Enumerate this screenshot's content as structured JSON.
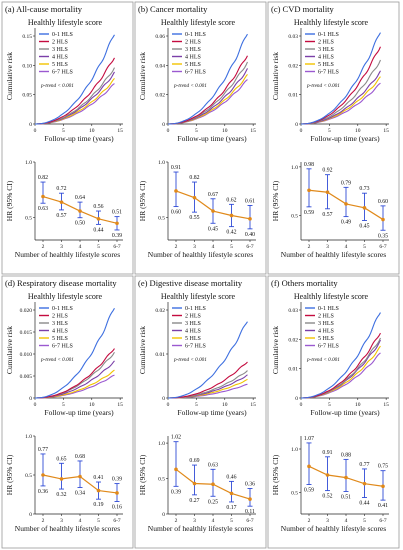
{
  "colors": {
    "hls_0_1": "#3d6fe0",
    "hls_2": "#c40b3f",
    "hls_3": "#8a8a8a",
    "hls_4": "#7b3fa8",
    "hls_5": "#f2c300",
    "hls_6_7": "#9b59d0",
    "trend_line": "#e0891a",
    "error_bar": "#2f4bd6",
    "panel_border": "#9a9a9a"
  },
  "common": {
    "top_header": "Healthly lifestyle score",
    "legend_labels": [
      "0-1 HLS",
      "2 HLS",
      "3 HLS",
      "4 HLS",
      "5 HLS",
      "6-7 HLS"
    ],
    "cum_ylabel": "Cumulative risk",
    "cum_xlabel": "Follow-up time (years)",
    "cum_xticks": [
      "0",
      "5",
      "10",
      "15"
    ],
    "ptrend": "p-trend < 0.001",
    "hr_ylabel": "HR (95% CI)",
    "hr_xlabel": "Number of healthly lifestyle scores",
    "hr_xticks": [
      "2",
      "3",
      "4",
      "5",
      "6-7"
    ]
  },
  "chart_data": [
    {
      "panel": "(a) All-cause mortality",
      "type": "line",
      "cum_yticks": [
        "0",
        "0.05",
        "0.10",
        "0.15"
      ],
      "cum_ymax": 0.15,
      "cum_end": [
        0.142,
        0.105,
        0.088,
        0.08,
        0.07,
        0.063
      ],
      "hr": {
        "estimates": [
          0.69,
          0.64,
          0.56,
          0.49,
          0.45
        ],
        "upper": [
          0.82,
          0.72,
          0.64,
          0.56,
          0.51
        ],
        "lower": [
          0.63,
          0.57,
          0.5,
          0.44,
          0.39
        ],
        "upper_labels": [
          "0.82",
          "0.72",
          "0.64",
          "0.56",
          "0.51"
        ],
        "lower_labels": [
          "0.63",
          "0.57",
          "0.50",
          "0.44",
          "0.39"
        ],
        "ylim": [
          0.3,
          1.0
        ],
        "yticks": [
          "0.5",
          "1.0"
        ]
      }
    },
    {
      "panel": "(b) Cancer mortality",
      "type": "line",
      "cum_yticks": [
        "0",
        "0.02",
        "0.04",
        "0.06"
      ],
      "cum_ymax": 0.065,
      "cum_end": [
        0.062,
        0.047,
        0.042,
        0.037,
        0.033,
        0.03
      ],
      "hr": {
        "estimates": [
          0.74,
          0.68,
          0.56,
          0.52,
          0.49
        ],
        "upper": [
          0.91,
          0.82,
          0.67,
          0.62,
          0.61
        ],
        "lower": [
          0.6,
          0.55,
          0.45,
          0.42,
          0.4
        ],
        "upper_labels": [
          "0.91",
          "0.82",
          "0.67",
          "0.62",
          "0.61"
        ],
        "lower_labels": [
          "0.60",
          "0.55",
          "0.45",
          "0.42",
          "0.40"
        ],
        "ylim": [
          0.3,
          1.0
        ],
        "yticks": [
          "0.5",
          "1.0"
        ]
      }
    },
    {
      "panel": "(c) CVD mortality",
      "type": "line",
      "cum_yticks": [
        "0",
        "0.01",
        "0.02",
        "0.03"
      ],
      "cum_ymax": 0.033,
      "cum_end": [
        0.032,
        0.027,
        0.022,
        0.018,
        0.016,
        0.014
      ],
      "hr": {
        "estimates": [
          0.76,
          0.74,
          0.62,
          0.58,
          0.46
        ],
        "upper": [
          0.98,
          0.92,
          0.79,
          0.73,
          0.6
        ],
        "lower": [
          0.59,
          0.57,
          0.49,
          0.45,
          0.35
        ],
        "upper_labels": [
          "0.98",
          "0.92",
          "0.79",
          "0.73",
          "0.60"
        ],
        "lower_labels": [
          "0.59",
          "0.57",
          "0.49",
          "0.45",
          "0.35"
        ],
        "ylim": [
          0.25,
          1.05
        ],
        "yticks": [
          "0.5",
          "1.0"
        ]
      }
    },
    {
      "panel": "(d) Respiratory disease mortality",
      "type": "line",
      "cum_yticks": [
        "0",
        "0.005",
        "0.010",
        "0.015",
        "0.020"
      ],
      "cum_ymax": 0.021,
      "cum_end": [
        0.02,
        0.011,
        0.01,
        0.008,
        0.006,
        0.005
      ],
      "hr": {
        "estimates": [
          0.5,
          0.45,
          0.48,
          0.3,
          0.27
        ],
        "upper": [
          0.77,
          0.65,
          0.68,
          0.41,
          0.39
        ],
        "lower": [
          0.36,
          0.32,
          0.34,
          0.19,
          0.16
        ],
        "upper_labels": [
          "0.77",
          "0.65",
          "0.68",
          "0.41",
          "0.39"
        ],
        "lower_labels": [
          "0.36",
          "0.32",
          "0.34",
          "0.19",
          "0.16"
        ],
        "ylim": [
          0.0,
          1.0
        ],
        "yticks": [
          "0",
          "0.5",
          "1.0"
        ]
      }
    },
    {
      "panel": "(e) Digestive disease mortality",
      "type": "line",
      "cum_yticks": [
        "0",
        "0.01",
        "0.02"
      ],
      "cum_ymax": 0.021,
      "cum_end": [
        0.017,
        0.008,
        0.006,
        0.005,
        0.004,
        0.003
      ],
      "hr": {
        "estimates": [
          0.63,
          0.43,
          0.42,
          0.29,
          0.21
        ],
        "upper": [
          1.02,
          0.69,
          0.63,
          0.46,
          0.36
        ],
        "lower": [
          0.39,
          0.27,
          0.25,
          0.17,
          0.11
        ],
        "upper_labels": [
          "1.02",
          "0.69",
          "0.63",
          "0.46",
          "0.36"
        ],
        "lower_labels": [
          "0.39",
          "0.27",
          "0.25",
          "0.17",
          "0.11"
        ],
        "ylim": [
          0.0,
          1.1
        ],
        "yticks": [
          "0",
          "0.5",
          "1.0"
        ]
      }
    },
    {
      "panel": "(f) Others mortality",
      "type": "line",
      "cum_yticks": [
        "0",
        "0.01",
        "0.02",
        "0.03"
      ],
      "cum_ymax": 0.032,
      "cum_end": [
        0.029,
        0.022,
        0.02,
        0.019,
        0.017,
        0.015
      ],
      "hr": {
        "estimates": [
          0.8,
          0.7,
          0.67,
          0.6,
          0.57
        ],
        "upper": [
          1.07,
          0.91,
          0.88,
          0.77,
          0.75
        ],
        "lower": [
          0.59,
          0.52,
          0.51,
          0.44,
          0.41
        ],
        "upper_labels": [
          "1.07",
          "0.91",
          "0.88",
          "0.77",
          "0.75"
        ],
        "lower_labels": [
          "0.59",
          "0.52",
          "0.51",
          "0.44",
          "0.41"
        ],
        "ylim": [
          0.25,
          1.15
        ],
        "yticks": [
          "0.5",
          "1.0"
        ]
      }
    }
  ]
}
